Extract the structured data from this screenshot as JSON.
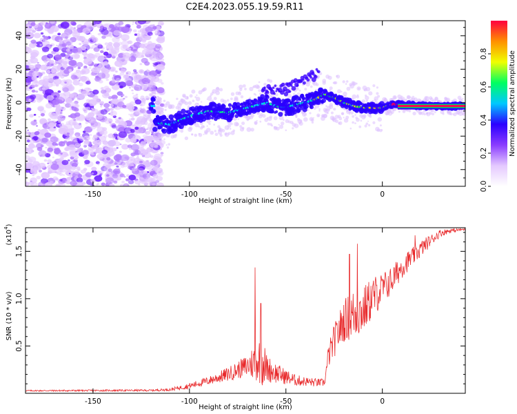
{
  "title": "C2E4.2023.055.19.59.R11",
  "chart_data": [
    {
      "type": "heatmap",
      "xlabel": "Height of straight line (km)",
      "ylabel": "Frequency (Hz)",
      "xlim": [
        -185,
        43
      ],
      "ylim": [
        -50,
        49
      ],
      "xticks": [
        -150,
        -100,
        -50,
        0
      ],
      "yticks": [
        -40,
        -20,
        0,
        20,
        40
      ],
      "colorbar": {
        "label": "Normalized spectral amplitude",
        "range": [
          0,
          1
        ],
        "ticks": [
          "0.0",
          "0.2",
          "0.4",
          "0.6",
          "0.8"
        ],
        "colormap": [
          "#ffffff",
          "#e4c8ff",
          "#8a3cff",
          "#2a00ff",
          "#00c8ff",
          "#00ff60",
          "#f0ff00",
          "#ff9000",
          "#ff0040"
        ]
      },
      "ridge": {
        "x": [
          -118,
          -110,
          -100,
          -90,
          -80,
          -70,
          -60,
          -55,
          -50,
          -45,
          -40,
          -35,
          -30,
          -25,
          -20,
          -15,
          -10,
          -5,
          0,
          5,
          10,
          20,
          30,
          43
        ],
        "y": [
          -12,
          -13,
          -8,
          -5,
          -6,
          -3,
          0,
          -2,
          -3,
          -1,
          0,
          2,
          5,
          3,
          0,
          -2,
          -3,
          -3,
          -3,
          -1,
          -1,
          -2,
          -2,
          -2
        ]
      },
      "noise_region_x": [
        -185,
        -120
      ]
    },
    {
      "type": "line",
      "xlabel": "Height of straight line (km)",
      "ylabel": "SNR (10 * v/v)",
      "ylabel_multiplier": "(x10",
      "ylabel_exponent": "4",
      "xlim": [
        -185,
        43
      ],
      "ylim": [
        0,
        17500
      ],
      "xticks": [
        -150,
        -100,
        -50,
        0
      ],
      "yticks": [
        5000,
        10000,
        15000
      ],
      "yticklabels": [
        "0.5",
        "1.0",
        "1.5"
      ],
      "line_color": "#e8282a",
      "envelope": {
        "x": [
          -185,
          -120,
          -110,
          -100,
          -90,
          -80,
          -75,
          -70,
          -65,
          -62,
          -60,
          -55,
          -50,
          -45,
          -40,
          -35,
          -30,
          -28,
          -25,
          -20,
          -15,
          -10,
          -5,
          0,
          5,
          10,
          15,
          20,
          25,
          30,
          35,
          43
        ],
        "base": [
          250,
          280,
          350,
          700,
          1200,
          1800,
          2200,
          2500,
          2800,
          2600,
          2200,
          1800,
          1500,
          1200,
          1100,
          1000,
          1000,
          3500,
          5000,
          7000,
          7500,
          8000,
          9500,
          10500,
          11500,
          13000,
          14000,
          15000,
          16000,
          16800,
          17100,
          17300
        ],
        "amp": [
          150,
          200,
          300,
          600,
          900,
          1500,
          1800,
          2500,
          4500,
          5500,
          3000,
          2200,
          1600,
          1200,
          1000,
          900,
          800,
          2500,
          3500,
          4500,
          5500,
          5000,
          4500,
          3500,
          3000,
          2500,
          2000,
          1800,
          1200,
          800,
          500,
          300
        ]
      },
      "peaks": [
        {
          "x": -66,
          "y": 13300
        },
        {
          "x": -63,
          "y": 9500
        },
        {
          "x": -13,
          "y": 15800
        },
        {
          "x": -17,
          "y": 14700
        },
        {
          "x": 17,
          "y": 16700
        }
      ]
    }
  ]
}
